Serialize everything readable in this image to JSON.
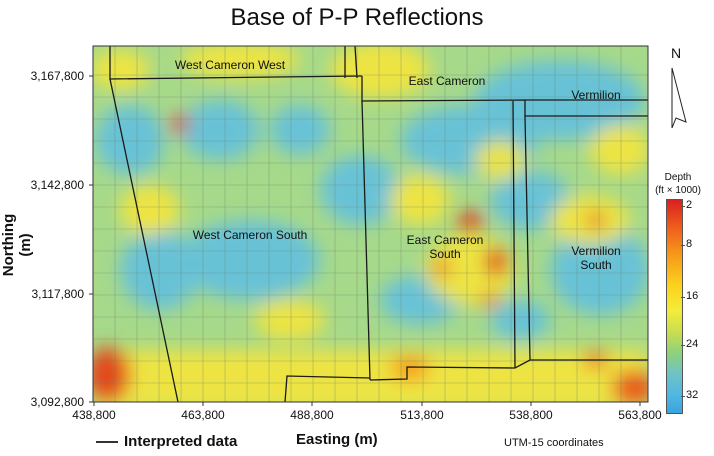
{
  "title": "Base of P-P Reflections",
  "axes": {
    "ylabel": "Northing (m)",
    "xlabel": "Easting (m)",
    "yticks": [
      "3,167,800",
      "3,142,800",
      "3,117,800",
      "3,092,800"
    ],
    "xticks": [
      "438,800",
      "463,800",
      "488,800",
      "513,800",
      "538,800",
      "563,800"
    ]
  },
  "legend": {
    "line_label": "Interpreted data"
  },
  "coordinate_note": "UTM-15 coordinates",
  "north_label": "N",
  "colorbar": {
    "title_line1": "Depth",
    "title_line2": "(ft × 1000)",
    "ticks": [
      "2",
      "8",
      "16",
      "24",
      "32"
    ],
    "colors": [
      "#d92020",
      "#f79a18",
      "#f4ec3a",
      "#8ed17c",
      "#3aa3de"
    ]
  },
  "regions": {
    "west_cameron_west": "West Cameron West",
    "east_cameron": "East Cameron",
    "vermilion": "Vermilion",
    "west_cameron_south": "West Cameron South",
    "east_cameron_south_1": "East Cameron",
    "east_cameron_south_2": "South",
    "vermilion_south_1": "Vermilion",
    "vermilion_south_2": "South"
  }
}
